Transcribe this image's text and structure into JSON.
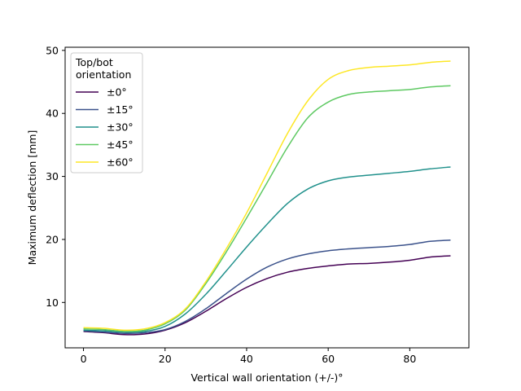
{
  "chart_data": {
    "type": "line",
    "xlabel": "Vertical wall orientation (+/-)°",
    "ylabel": "Maximum deflection [mm]",
    "xlim": [
      -4.5,
      94.5
    ],
    "ylim": [
      2.8,
      50.5
    ],
    "xticks": [
      0,
      20,
      40,
      60,
      80
    ],
    "yticks": [
      10,
      20,
      30,
      40,
      50
    ],
    "grid": false,
    "legend": {
      "title": "Top/bot\norientation",
      "placement": "upper-left"
    },
    "x": [
      0,
      5,
      10,
      15,
      20,
      25,
      30,
      35,
      40,
      45,
      50,
      55,
      60,
      65,
      70,
      75,
      80,
      85,
      90
    ],
    "series": [
      {
        "name": "±0°",
        "color": "#440154",
        "values": [
          5.4,
          5.2,
          4.9,
          5.0,
          5.6,
          6.8,
          8.6,
          10.6,
          12.4,
          13.8,
          14.8,
          15.4,
          15.8,
          16.1,
          16.2,
          16.4,
          16.7,
          17.2,
          17.4
        ]
      },
      {
        "name": "±15°",
        "color": "#3b528b",
        "values": [
          5.5,
          5.3,
          5.1,
          5.2,
          5.7,
          7.0,
          9.0,
          11.4,
          13.7,
          15.6,
          16.9,
          17.7,
          18.2,
          18.5,
          18.7,
          18.9,
          19.2,
          19.7,
          19.9
        ]
      },
      {
        "name": "±30°",
        "color": "#21918c",
        "values": [
          5.6,
          5.5,
          5.3,
          5.4,
          6.2,
          8.2,
          11.3,
          15.0,
          18.8,
          22.4,
          25.7,
          28.0,
          29.3,
          29.9,
          30.2,
          30.5,
          30.8,
          31.2,
          31.5
        ]
      },
      {
        "name": "±45°",
        "color": "#5ec962",
        "values": [
          5.8,
          5.7,
          5.4,
          5.6,
          6.6,
          8.8,
          13.0,
          18.0,
          23.4,
          29.0,
          34.6,
          39.3,
          41.8,
          43.0,
          43.4,
          43.6,
          43.8,
          44.2,
          44.4
        ]
      },
      {
        "name": "±60°",
        "color": "#fde725",
        "values": [
          6.0,
          5.9,
          5.6,
          5.8,
          6.8,
          9.0,
          13.3,
          18.5,
          24.2,
          30.5,
          36.8,
          42.0,
          45.4,
          46.8,
          47.3,
          47.5,
          47.7,
          48.1,
          48.3
        ]
      }
    ]
  }
}
